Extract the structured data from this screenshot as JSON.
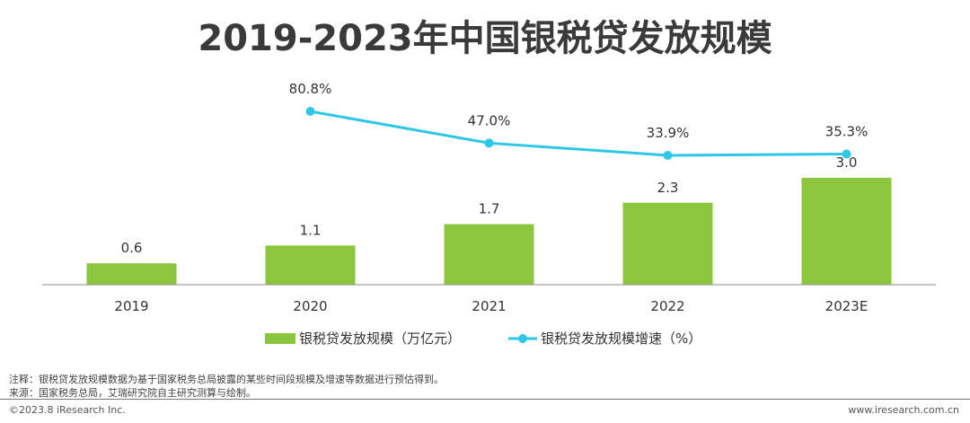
{
  "chart_data": {
    "type": "bar",
    "title": "2019-2023年中国银税贷发放规模",
    "categories": [
      "2019",
      "2020",
      "2021",
      "2022",
      "2023E"
    ],
    "series": [
      {
        "name": "银税贷发放规模（万亿元）",
        "type": "bar",
        "values": [
          0.6,
          1.1,
          1.7,
          2.3,
          3.0
        ],
        "labels": [
          "0.6",
          "1.1",
          "1.7",
          "2.3",
          "3.0"
        ]
      },
      {
        "name": "银税贷发放规模增速（%）",
        "type": "line",
        "values": [
          null,
          80.8,
          47.0,
          33.9,
          35.3
        ],
        "labels": [
          "",
          "80.8%",
          "47.0%",
          "33.9%",
          "35.3%"
        ]
      }
    ],
    "legend_position": "bottom",
    "colors": {
      "bar": "#8cc63f",
      "line": "#2ec7e8",
      "axis": "#8c8c8c"
    }
  },
  "notes": {
    "note": "注释：银税贷发放规模数据为基于国家税务总局披露的某些时间段规模及增速等数据进行预估得到。",
    "source": "来源：国家税务总局，艾瑞研究院自主研究测算与绘制。"
  },
  "footer": {
    "copyright": "©2023.8 iResearch Inc.",
    "website": "www.iresearch.com.cn"
  }
}
